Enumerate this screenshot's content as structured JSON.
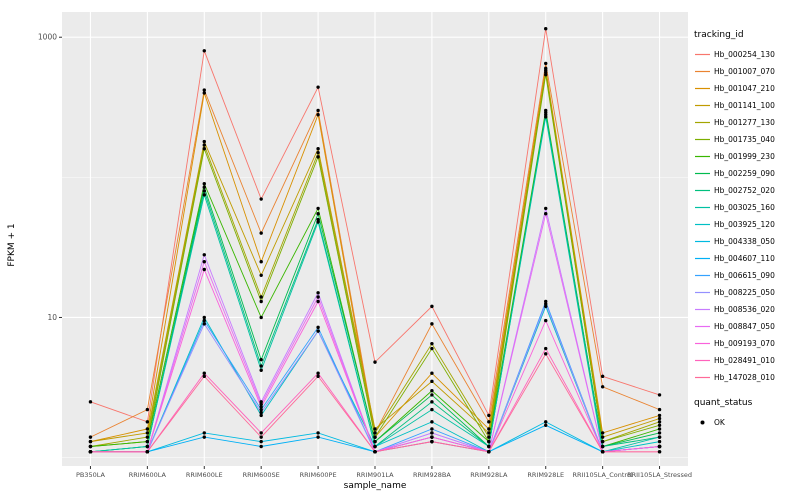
{
  "legend": {
    "tracking_title": "tracking_id",
    "quant_title": "quant_status",
    "quant_ok": "OK"
  },
  "chart_data": {
    "type": "line",
    "title": "",
    "xlabel": "sample_name",
    "ylabel": "FPKM + 1",
    "y_scale": "log10",
    "ylim": [
      0.87,
      1500
    ],
    "grid": {
      "major_y": [
        10,
        1000
      ],
      "minor_y": [
        1,
        100
      ],
      "panel_bg": "#EBEBEB",
      "grid_color": "#FFFFFF"
    },
    "y_ticks": [
      {
        "label": "1000",
        "value": 1000
      },
      {
        "label": "10",
        "value": 10
      }
    ],
    "point_color": "#000000",
    "categories": [
      "PB350LA",
      "RRIM600LA",
      "RRIM600LE",
      "RRIM600SE",
      "RRIM600PE",
      "RRIM901LA",
      "RRIM928BA",
      "RRIM928LA",
      "RRIM928LE",
      "RRII105LA_Control",
      "RRII105LA_Stressed"
    ],
    "series": [
      {
        "name": "Hb_000254_130",
        "color": "#F8766D",
        "values": [
          2.5,
          1.8,
          800,
          70,
          440,
          4.8,
          12,
          2.0,
          1150,
          3.8,
          2.8
        ]
      },
      {
        "name": "Hb_001007_070",
        "color": "#EA8331",
        "values": [
          1.4,
          2.2,
          420,
          40,
          300,
          1.5,
          9,
          1.8,
          650,
          3.2,
          2.2
        ]
      },
      {
        "name": "Hb_001047_210",
        "color": "#D89000",
        "values": [
          1.3,
          1.6,
          400,
          25,
          280,
          1.4,
          4.0,
          1.6,
          600,
          1.5,
          2.0
        ]
      },
      {
        "name": "Hb_001141_100",
        "color": "#C09B00",
        "values": [
          1.3,
          1.5,
          180,
          20,
          160,
          1.6,
          3.5,
          1.5,
          580,
          1.4,
          1.9
        ]
      },
      {
        "name": "Hb_001277_130",
        "color": "#A3A500",
        "values": [
          1.2,
          1.4,
          170,
          14,
          150,
          1.5,
          6.5,
          1.4,
          560,
          1.3,
          1.8
        ]
      },
      {
        "name": "Hb_001735_040",
        "color": "#7CAE00",
        "values": [
          1.2,
          1.3,
          160,
          13,
          140,
          1.4,
          6.0,
          1.3,
          540,
          1.3,
          1.7
        ]
      },
      {
        "name": "Hb_001999_230",
        "color": "#39B600",
        "values": [
          1.2,
          1.3,
          90,
          10,
          60,
          1.3,
          3.0,
          1.3,
          300,
          1.2,
          1.6
        ]
      },
      {
        "name": "Hb_002259_090",
        "color": "#00BB4E",
        "values": [
          1.1,
          1.2,
          85,
          5,
          55,
          1.3,
          2.8,
          1.2,
          290,
          1.2,
          1.5
        ]
      },
      {
        "name": "Hb_002752_020",
        "color": "#00BF7D",
        "values": [
          1.1,
          1.2,
          80,
          4.5,
          50,
          1.2,
          2.5,
          1.2,
          280,
          1.2,
          1.4
        ]
      },
      {
        "name": "Hb_003025_160",
        "color": "#00C1A3",
        "values": [
          1.1,
          1.2,
          75,
          4.2,
          48,
          1.2,
          2.2,
          1.2,
          270,
          1.1,
          1.4
        ]
      },
      {
        "name": "Hb_003925_120",
        "color": "#00BFC4",
        "values": [
          1.1,
          1.1,
          10,
          2.0,
          8,
          1.2,
          1.8,
          1.1,
          12,
          1.1,
          1.3
        ]
      },
      {
        "name": "Hb_004338_050",
        "color": "#00BAE0",
        "values": [
          1.1,
          1.1,
          1.5,
          1.3,
          1.5,
          1.1,
          1.4,
          1.1,
          1.8,
          1.1,
          1.2
        ]
      },
      {
        "name": "Hb_004607_110",
        "color": "#00B0F6",
        "values": [
          1.1,
          1.1,
          1.4,
          1.2,
          1.4,
          1.1,
          1.3,
          1.1,
          1.7,
          1.1,
          1.2
        ]
      },
      {
        "name": "Hb_006615_090",
        "color": "#35A2FF",
        "values": [
          1.1,
          1.1,
          9.5,
          2.2,
          8.5,
          1.1,
          1.6,
          1.1,
          13,
          1.1,
          1.2
        ]
      },
      {
        "name": "Hb_008225_050",
        "color": "#9590FF",
        "values": [
          1.1,
          1.1,
          9.0,
          2.1,
          8.0,
          1.1,
          1.5,
          1.1,
          12.5,
          1.1,
          1.2
        ]
      },
      {
        "name": "Hb_008536_020",
        "color": "#C77CFF",
        "values": [
          1.1,
          1.1,
          28,
          2.5,
          15,
          1.1,
          1.5,
          1.1,
          60,
          1.1,
          1.2
        ]
      },
      {
        "name": "Hb_008847_050",
        "color": "#E76BF3",
        "values": [
          1.1,
          1.1,
          25,
          2.4,
          14,
          1.1,
          1.4,
          1.1,
          55,
          1.1,
          1.2
        ]
      },
      {
        "name": "Hb_009193_070",
        "color": "#FA62DB",
        "values": [
          1.1,
          1.1,
          22,
          2.3,
          13,
          1.1,
          1.4,
          1.1,
          9.5,
          1.1,
          1.2
        ]
      },
      {
        "name": "Hb_028491_010",
        "color": "#FF62BC",
        "values": [
          1.1,
          1.1,
          4.0,
          1.5,
          4.0,
          1.1,
          1.3,
          1.1,
          6.0,
          1.1,
          1.1
        ]
      },
      {
        "name": "Hb_147028_010",
        "color": "#FF6A98",
        "values": [
          1.1,
          1.1,
          3.8,
          1.4,
          3.8,
          1.1,
          1.3,
          1.1,
          5.5,
          1.1,
          1.1
        ]
      }
    ]
  }
}
